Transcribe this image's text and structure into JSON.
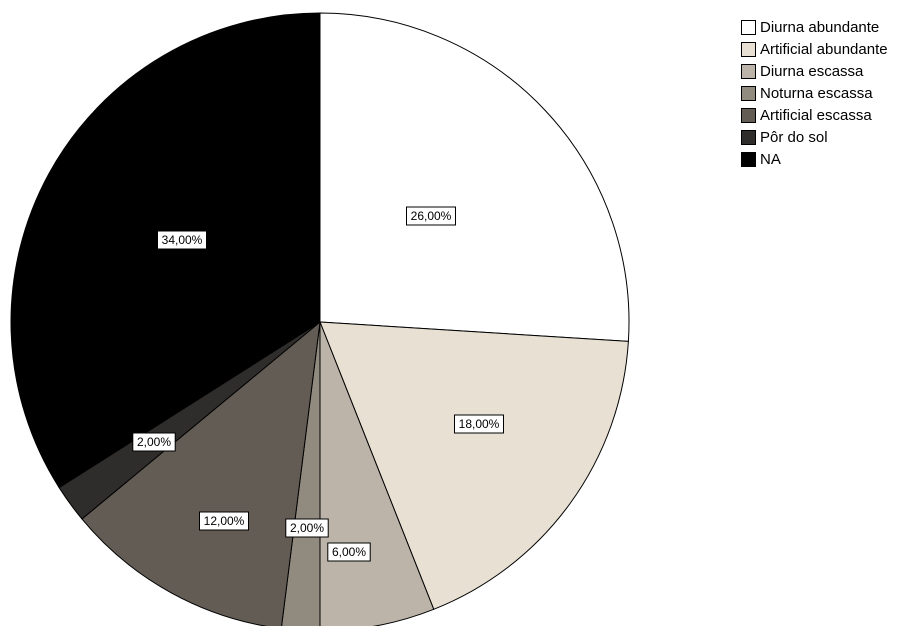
{
  "chart_data": {
    "type": "pie",
    "title": "",
    "start_angle_deg": 0,
    "direction": "clockwise",
    "legend_position": "top-right",
    "slices": [
      {
        "label": "Diurna abundante",
        "value": 26,
        "value_label": "26,00%",
        "color": "#ffffff"
      },
      {
        "label": "Artificial abundante",
        "value": 18,
        "value_label": "18,00%",
        "color": "#e8e1d3"
      },
      {
        "label": "Diurna escassa",
        "value": 6,
        "value_label": "6,00%",
        "color": "#bcb4a9"
      },
      {
        "label": "Noturna escassa",
        "value": 2,
        "value_label": "2,00%",
        "color": "#918a7f"
      },
      {
        "label": "Artificial escassa",
        "value": 12,
        "value_label": "12,00%",
        "color": "#625c55"
      },
      {
        "label": "Pôr do sol",
        "value": 2,
        "value_label": "2,00%",
        "color": "#2f2d2b"
      },
      {
        "label": "NA",
        "value": 34,
        "value_label": "34,00%",
        "color": "#000000"
      }
    ]
  }
}
